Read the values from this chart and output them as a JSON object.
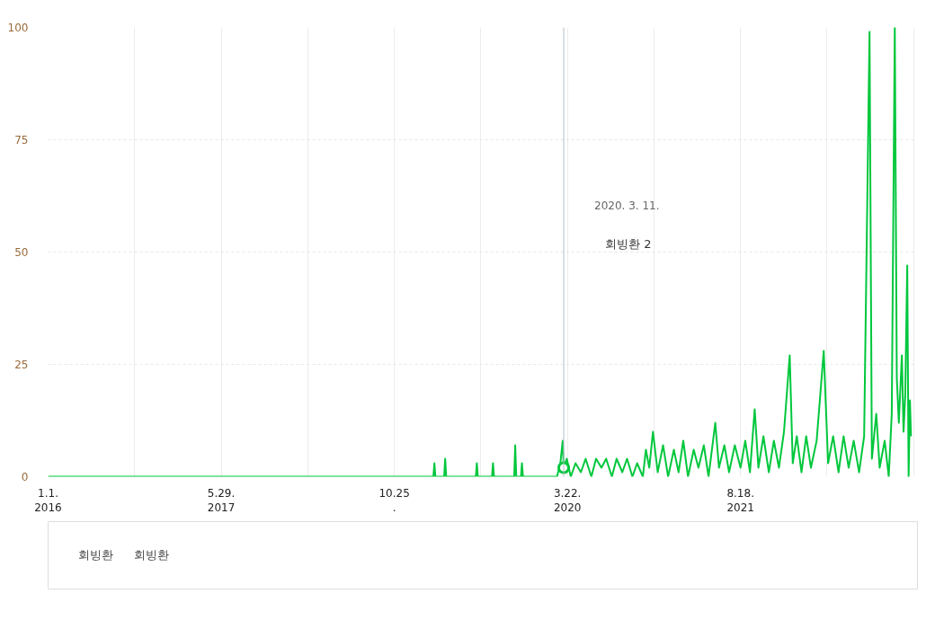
{
  "chart_data": {
    "type": "line",
    "x": [
      "2016-01-01",
      "2019-02-18",
      "2019-02-21",
      "2019-02-24",
      "2019-03-22",
      "2019-03-25",
      "2019-03-28",
      "2019-06-24",
      "2019-06-27",
      "2019-06-30",
      "2019-08-11",
      "2019-08-14",
      "2019-08-17",
      "2019-10-16",
      "2019-10-19",
      "2019-10-22",
      "2019-11-05",
      "2019-11-08",
      "2019-11-11",
      "2020-02-20",
      "2020-03-01",
      "2020-03-08",
      "2020-03-11",
      "2020-03-20",
      "2020-04-01",
      "2020-04-15",
      "2020-05-01",
      "2020-05-15",
      "2020-06-01",
      "2020-06-15",
      "2020-07-01",
      "2020-07-15",
      "2020-08-01",
      "2020-08-15",
      "2020-09-01",
      "2020-09-15",
      "2020-10-01",
      "2020-10-15",
      "2020-11-01",
      "2020-11-10",
      "2020-11-20",
      "2020-12-01",
      "2020-12-15",
      "2020-12-31",
      "2021-01-15",
      "2021-02-01",
      "2021-02-15",
      "2021-03-01",
      "2021-03-15",
      "2021-04-01",
      "2021-04-15",
      "2021-05-01",
      "2021-05-15",
      "2021-06-04",
      "2021-06-15",
      "2021-07-01",
      "2021-07-15",
      "2021-08-01",
      "2021-08-18",
      "2021-09-01",
      "2021-09-15",
      "2021-09-29",
      "2021-10-10",
      "2021-10-25",
      "2021-11-10",
      "2021-11-25",
      "2021-12-10",
      "2021-12-25",
      "2022-01-11",
      "2022-01-20",
      "2022-02-01",
      "2022-02-15",
      "2022-03-01",
      "2022-03-15",
      "2022-04-01",
      "2022-04-22",
      "2022-05-05",
      "2022-05-20",
      "2022-06-05",
      "2022-06-20",
      "2022-07-05",
      "2022-07-20",
      "2022-08-05",
      "2022-08-20",
      "2022-09-05",
      "2022-09-12",
      "2022-09-25",
      "2022-10-05",
      "2022-10-20",
      "2022-11-01",
      "2022-11-10",
      "2022-11-19",
      "2022-11-25",
      "2022-12-01",
      "2022-12-10",
      "2022-12-15",
      "2022-12-20",
      "2022-12-26",
      "2022-12-30",
      "2023-01-03",
      "2023-01-06"
    ],
    "series": [
      {
        "name": "회빙환",
        "color": "#00c73c",
        "values": [
          0,
          0,
          3,
          0,
          0,
          4,
          0,
          0,
          3,
          0,
          0,
          3,
          0,
          0,
          7,
          0,
          0,
          3,
          0,
          0,
          3,
          8,
          2,
          4,
          0,
          3,
          1,
          4,
          0,
          4,
          2,
          4,
          0,
          4,
          1,
          4,
          0,
          3,
          0,
          6,
          2,
          10,
          1,
          7,
          0,
          6,
          1,
          8,
          0,
          6,
          2,
          7,
          0,
          12,
          2,
          7,
          1,
          7,
          2,
          8,
          1,
          15,
          2,
          9,
          1,
          8,
          2,
          10,
          27,
          3,
          9,
          1,
          9,
          2,
          8,
          28,
          3,
          9,
          1,
          9,
          2,
          8,
          1,
          9,
          99,
          4,
          14,
          2,
          8,
          0,
          14,
          100,
          22,
          12,
          27,
          10,
          18,
          47,
          0,
          17,
          9
        ]
      }
    ],
    "xlim": [
      "2016-01-01",
      "2023-01-20"
    ],
    "xticks": [
      {
        "value": "2016-01-01",
        "label": "1.1.\n2016"
      },
      {
        "value": "2016-09-14",
        "label": null
      },
      {
        "value": "2017-05-29",
        "label": "5.29.\n2017"
      },
      {
        "value": "2018-02-10",
        "label": null
      },
      {
        "value": "2018-10-25",
        "label": "10.25\n."
      },
      {
        "value": "2019-07-09",
        "label": null
      },
      {
        "value": "2020-03-22",
        "label": "3.22.\n2020"
      },
      {
        "value": "2020-12-04",
        "label": null
      },
      {
        "value": "2021-08-18",
        "label": "8.18.\n2021"
      },
      {
        "value": "2022-05-02",
        "label": null
      },
      {
        "value": "2023-01-14",
        "label": null
      }
    ],
    "ylim": [
      0,
      100
    ],
    "yticks": [
      0,
      25,
      50,
      75,
      100
    ],
    "grid": true,
    "legend": "bottom",
    "line_style": "solid",
    "ref_lines": [
      {
        "axis": "x",
        "value": "2020-03-11",
        "label": null,
        "color": "#b0bcc8"
      }
    ],
    "annotations": [
      "2020. 3. 11.",
      "회빙환     2",
      "회빙환"
    ]
  }
}
